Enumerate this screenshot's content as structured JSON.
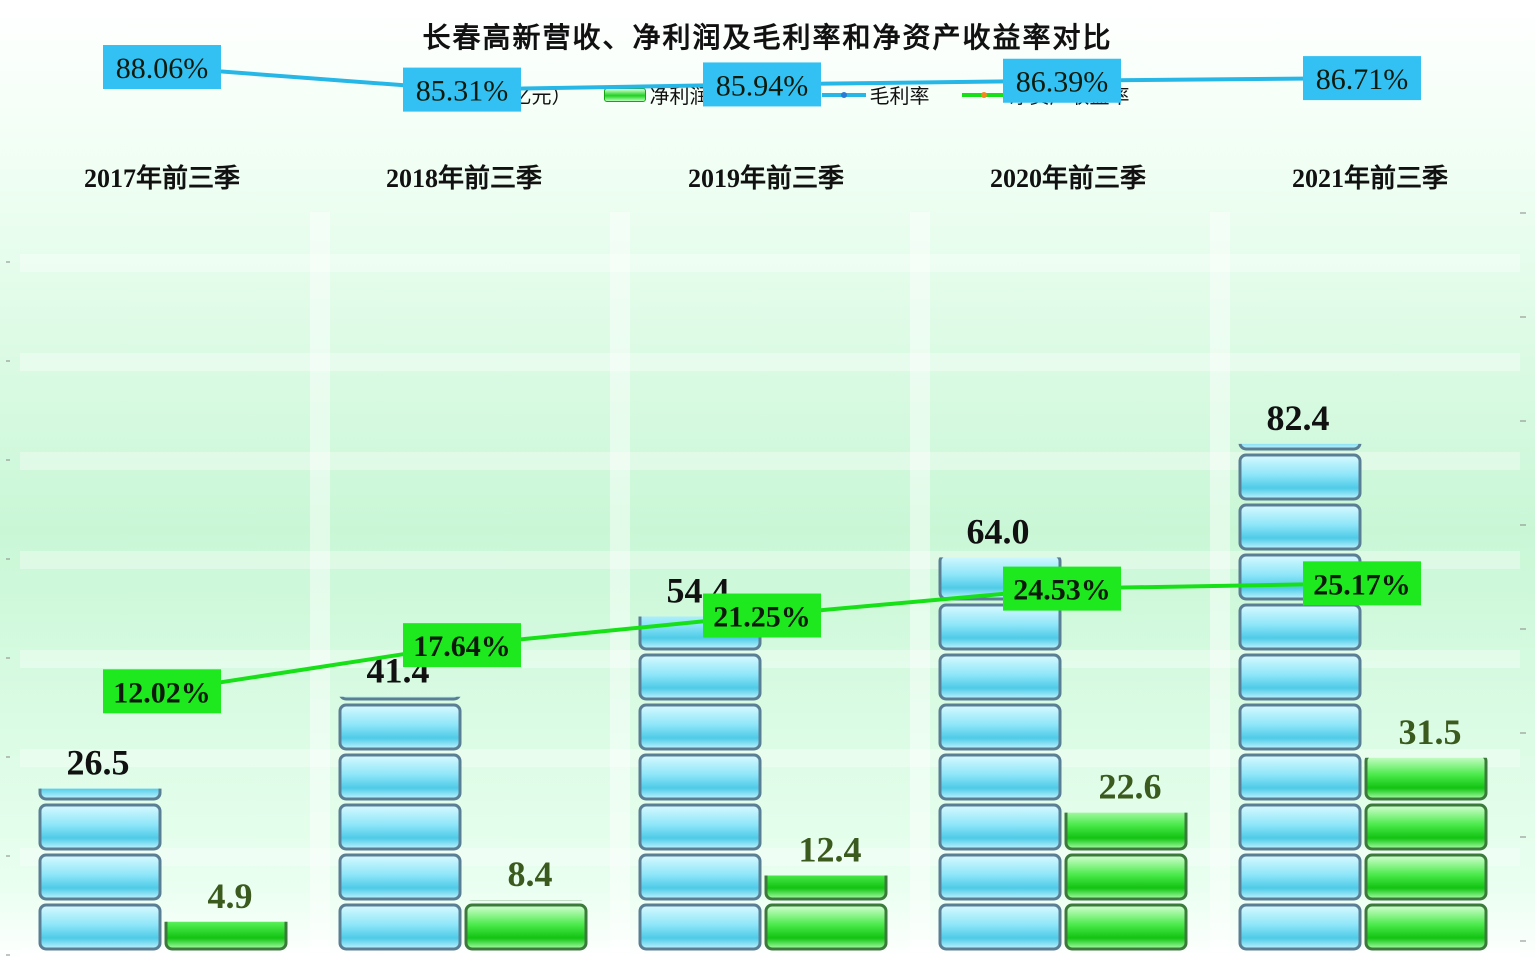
{
  "chart_data": {
    "type": "bar",
    "title": "长春高新营收、净利润及毛利率和净资产收益率对比",
    "categories": [
      "2017年前三季",
      "2018年前三季",
      "2019年前三季",
      "2020年前三季",
      "2021年前三季"
    ],
    "series": [
      {
        "name": "营收（亿元）",
        "kind": "bar",
        "color": "#5fd3f0",
        "values": [
          26.5,
          41.4,
          54.4,
          64.0,
          82.4
        ],
        "labels": [
          "26.5",
          "41.4",
          "54.4",
          "64.0",
          "82.4"
        ]
      },
      {
        "name": "净利润（亿元）",
        "kind": "bar",
        "color": "#1fd11f",
        "values": [
          4.9,
          8.4,
          12.4,
          22.6,
          31.5
        ],
        "labels": [
          "4.9",
          "8.4",
          "12.4",
          "22.6",
          "31.5"
        ]
      },
      {
        "name": "毛利率",
        "kind": "line",
        "color": "#27b7e6",
        "values": [
          88.06,
          85.31,
          85.94,
          86.39,
          86.71
        ],
        "labels": [
          "88.06%",
          "85.31%",
          "85.94%",
          "86.39%",
          "86.71%"
        ]
      },
      {
        "name": "净资产收益率",
        "kind": "line",
        "color": "#18e018",
        "values": [
          12.02,
          17.64,
          21.25,
          24.53,
          25.17
        ],
        "labels": [
          "12.02%",
          "17.64%",
          "21.25%",
          "24.53%",
          "25.17%"
        ]
      }
    ],
    "legend_position": "top-center",
    "grid": true
  }
}
